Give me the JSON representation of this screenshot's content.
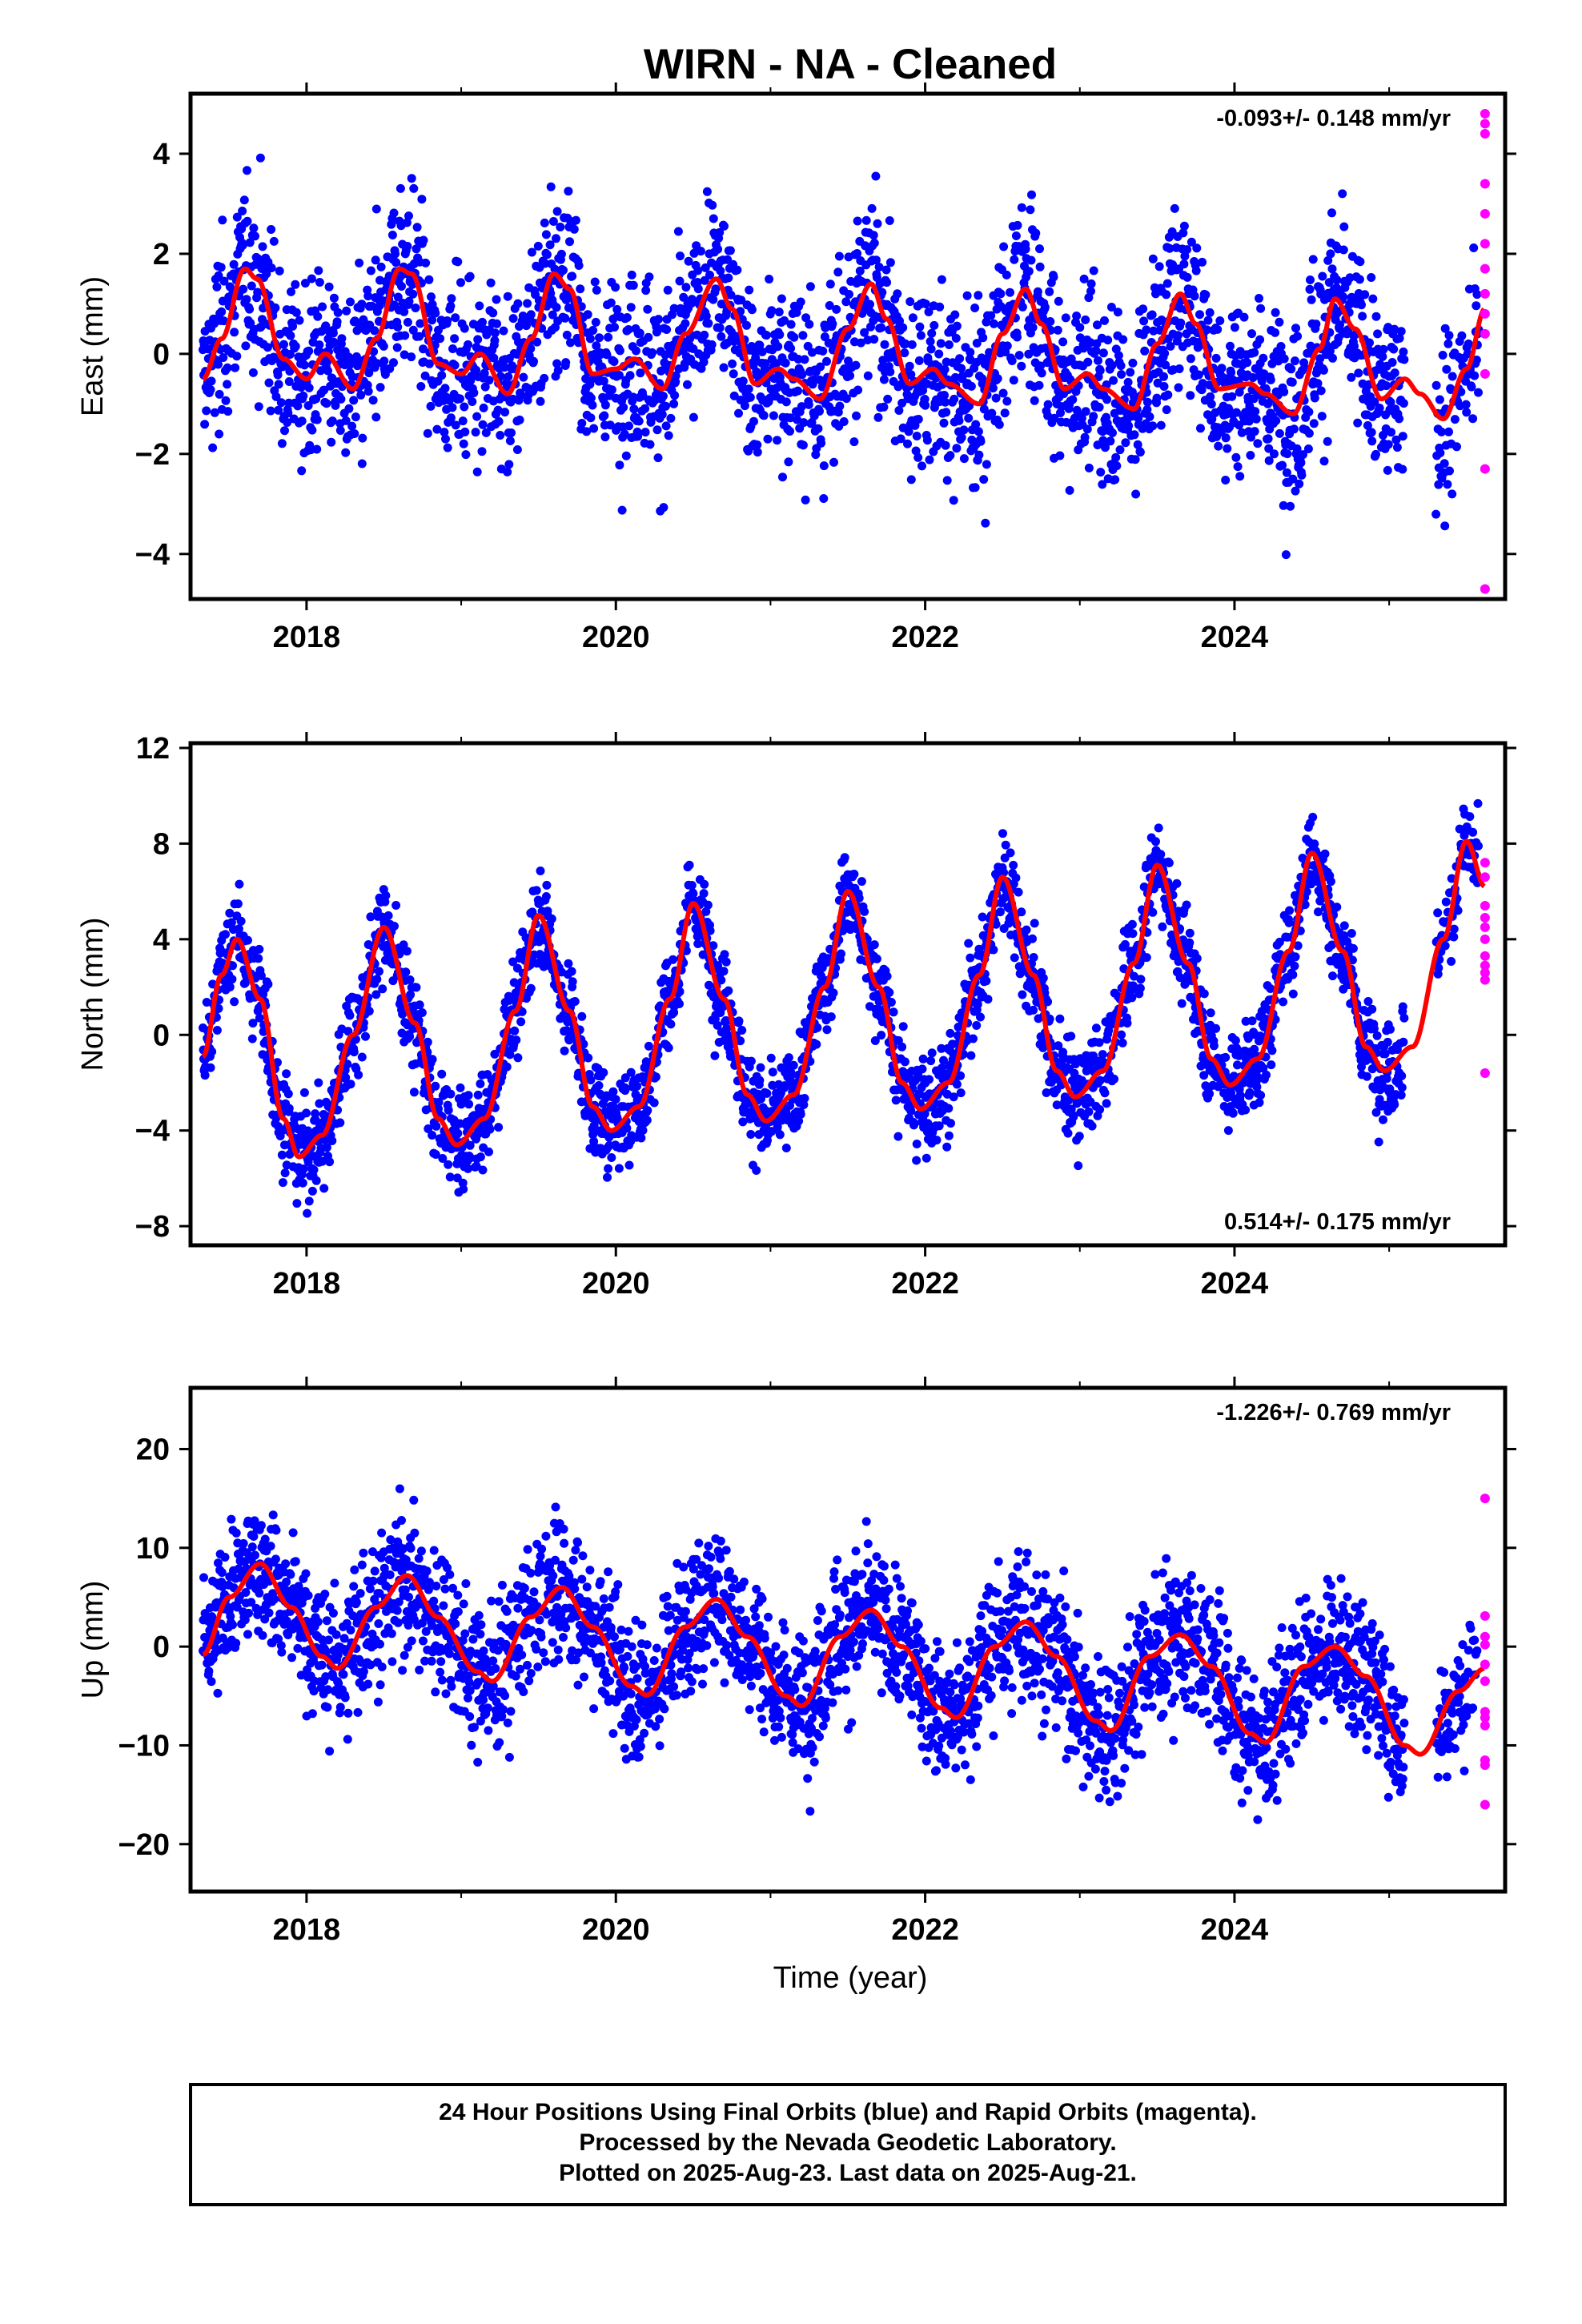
{
  "chart_data": {
    "type": "scatter",
    "title": "WIRN  - NA - Cleaned",
    "xlabel": "Time (year)",
    "xlim": [
      2017.25,
      2025.75
    ],
    "x_ticks": [
      "2018",
      "2020",
      "2022",
      "2024"
    ],
    "x_tick_values": [
      2018,
      2020,
      2022,
      2024
    ],
    "grid": false,
    "series_legend": "24 Hour Positions Using Final Orbits (blue) and Rapid Orbits (magenta).",
    "colors": {
      "final": "#0000ff",
      "rapid": "#ff00ff",
      "model": "#ff0000"
    },
    "panels": [
      {
        "key": "east",
        "ylabel": "East (mm)",
        "ylim": [
          -4.9,
          5.2
        ],
        "y_ticks": [
          -4,
          -2,
          0,
          2,
          4
        ],
        "rate": "-0.093+/- 0.148 mm/yr",
        "rate_position": "top-right",
        "model_curve": [
          [
            2017.33,
            -0.5
          ],
          [
            2017.45,
            0.3
          ],
          [
            2017.6,
            1.7
          ],
          [
            2017.68,
            1.5
          ],
          [
            2017.85,
            -0.1
          ],
          [
            2018.0,
            -0.5
          ],
          [
            2018.12,
            0.0
          ],
          [
            2018.3,
            -0.7
          ],
          [
            2018.45,
            0.3
          ],
          [
            2018.6,
            1.7
          ],
          [
            2018.68,
            1.6
          ],
          [
            2018.85,
            -0.2
          ],
          [
            2019.0,
            -0.4
          ],
          [
            2019.12,
            0.0
          ],
          [
            2019.3,
            -0.8
          ],
          [
            2019.45,
            0.3
          ],
          [
            2019.6,
            1.6
          ],
          [
            2019.7,
            1.3
          ],
          [
            2019.85,
            -0.4
          ],
          [
            2020.0,
            -0.3
          ],
          [
            2020.12,
            -0.1
          ],
          [
            2020.3,
            -0.7
          ],
          [
            2020.45,
            0.4
          ],
          [
            2020.65,
            1.5
          ],
          [
            2020.75,
            0.9
          ],
          [
            2020.9,
            -0.6
          ],
          [
            2021.05,
            -0.3
          ],
          [
            2021.15,
            -0.5
          ],
          [
            2021.32,
            -0.9
          ],
          [
            2021.5,
            0.5
          ],
          [
            2021.65,
            1.4
          ],
          [
            2021.75,
            0.7
          ],
          [
            2021.9,
            -0.6
          ],
          [
            2022.05,
            -0.3
          ],
          [
            2022.15,
            -0.6
          ],
          [
            2022.35,
            -1.0
          ],
          [
            2022.5,
            0.4
          ],
          [
            2022.65,
            1.3
          ],
          [
            2022.75,
            0.6
          ],
          [
            2022.9,
            -0.7
          ],
          [
            2023.05,
            -0.4
          ],
          [
            2023.15,
            -0.7
          ],
          [
            2023.35,
            -1.1
          ],
          [
            2023.5,
            0.2
          ],
          [
            2023.65,
            1.2
          ],
          [
            2023.75,
            0.6
          ],
          [
            2023.9,
            -0.7
          ],
          [
            2024.1,
            -0.6
          ],
          [
            2024.2,
            -0.8
          ],
          [
            2024.38,
            -1.2
          ],
          [
            2024.55,
            0.1
          ],
          [
            2024.65,
            1.1
          ],
          [
            2024.78,
            0.5
          ],
          [
            2024.95,
            -0.9
          ],
          [
            2025.1,
            -0.5
          ],
          [
            2025.2,
            -0.8
          ],
          [
            2025.35,
            -1.3
          ],
          [
            2025.5,
            -0.3
          ],
          [
            2025.62,
            0.9
          ]
        ],
        "rapid_points": [
          4.8,
          4.6,
          4.4,
          3.4,
          2.8,
          2.2,
          1.7,
          1.2,
          0.8,
          0.4,
          -0.4,
          -2.3,
          -4.7
        ]
      },
      {
        "key": "north",
        "ylabel": "North (mm)",
        "ylim": [
          -8.8,
          12.2
        ],
        "y_ticks": [
          -8,
          -4,
          0,
          4,
          8,
          12
        ],
        "rate": "0.514+/- 0.175 mm/yr",
        "rate_position": "bottom-right",
        "model_curve": [
          [
            2017.33,
            -0.9
          ],
          [
            2017.45,
            2.5
          ],
          [
            2017.55,
            4.0
          ],
          [
            2017.7,
            1.5
          ],
          [
            2017.85,
            -3.5
          ],
          [
            2017.95,
            -5.1
          ],
          [
            2018.1,
            -4.2
          ],
          [
            2018.3,
            0.0
          ],
          [
            2018.5,
            4.5
          ],
          [
            2018.7,
            0.5
          ],
          [
            2018.85,
            -3.5
          ],
          [
            2018.97,
            -4.6
          ],
          [
            2019.15,
            -3.5
          ],
          [
            2019.35,
            1.0
          ],
          [
            2019.5,
            5.0
          ],
          [
            2019.7,
            1.0
          ],
          [
            2019.85,
            -3.0
          ],
          [
            2019.97,
            -4.0
          ],
          [
            2020.15,
            -3.0
          ],
          [
            2020.35,
            1.5
          ],
          [
            2020.5,
            5.5
          ],
          [
            2020.7,
            1.5
          ],
          [
            2020.85,
            -2.5
          ],
          [
            2020.97,
            -3.6
          ],
          [
            2021.15,
            -2.5
          ],
          [
            2021.35,
            2.0
          ],
          [
            2021.5,
            6.0
          ],
          [
            2021.7,
            2.0
          ],
          [
            2021.85,
            -2.0
          ],
          [
            2021.97,
            -3.1
          ],
          [
            2022.15,
            -2.0
          ],
          [
            2022.35,
            2.5
          ],
          [
            2022.5,
            6.6
          ],
          [
            2022.7,
            2.5
          ],
          [
            2022.85,
            -1.5
          ],
          [
            2022.97,
            -2.6
          ],
          [
            2023.15,
            -1.5
          ],
          [
            2023.35,
            3.0
          ],
          [
            2023.5,
            7.1
          ],
          [
            2023.7,
            3.0
          ],
          [
            2023.85,
            -1.0
          ],
          [
            2023.97,
            -2.1
          ],
          [
            2024.15,
            -1.0
          ],
          [
            2024.35,
            3.5
          ],
          [
            2024.5,
            7.6
          ],
          [
            2024.7,
            3.5
          ],
          [
            2024.85,
            -0.5
          ],
          [
            2024.97,
            -1.5
          ],
          [
            2025.15,
            -0.5
          ],
          [
            2025.35,
            4.0
          ],
          [
            2025.5,
            8.1
          ],
          [
            2025.62,
            6.2
          ]
        ],
        "rapid_points": [
          7.2,
          6.6,
          5.4,
          4.9,
          4.5,
          4.0,
          3.3,
          2.9,
          2.6,
          2.3,
          -1.6
        ]
      },
      {
        "key": "up",
        "ylabel": "Up (mm)",
        "ylim": [
          -24.8,
          26.2
        ],
        "y_ticks": [
          -20,
          -10,
          0,
          10,
          20
        ],
        "rate": "-1.226+/- 0.769 mm/yr",
        "rate_position": "top-right",
        "model_curve": [
          [
            2017.33,
            -0.8
          ],
          [
            2017.5,
            5.0
          ],
          [
            2017.7,
            8.4
          ],
          [
            2017.9,
            4.0
          ],
          [
            2018.1,
            -1.0
          ],
          [
            2018.2,
            -2.2
          ],
          [
            2018.45,
            4.0
          ],
          [
            2018.65,
            7.2
          ],
          [
            2018.85,
            3.0
          ],
          [
            2019.1,
            -2.5
          ],
          [
            2019.2,
            -3.5
          ],
          [
            2019.45,
            3.0
          ],
          [
            2019.65,
            6.0
          ],
          [
            2019.85,
            2.0
          ],
          [
            2020.1,
            -4.0
          ],
          [
            2020.2,
            -4.9
          ],
          [
            2020.45,
            2.0
          ],
          [
            2020.65,
            4.8
          ],
          [
            2020.85,
            1.0
          ],
          [
            2021.1,
            -5.0
          ],
          [
            2021.2,
            -6.0
          ],
          [
            2021.45,
            1.0
          ],
          [
            2021.65,
            3.7
          ],
          [
            2021.85,
            0.0
          ],
          [
            2022.1,
            -6.2
          ],
          [
            2022.2,
            -7.2
          ],
          [
            2022.45,
            0.0
          ],
          [
            2022.65,
            2.5
          ],
          [
            2022.85,
            -1.0
          ],
          [
            2023.1,
            -7.5
          ],
          [
            2023.2,
            -8.5
          ],
          [
            2023.45,
            -1.0
          ],
          [
            2023.65,
            1.2
          ],
          [
            2023.85,
            -2.0
          ],
          [
            2024.1,
            -8.8
          ],
          [
            2024.2,
            -9.7
          ],
          [
            2024.45,
            -2.0
          ],
          [
            2024.65,
            0.0
          ],
          [
            2024.85,
            -3.0
          ],
          [
            2025.1,
            -10.0
          ],
          [
            2025.2,
            -10.9
          ],
          [
            2025.45,
            -4.5
          ],
          [
            2025.62,
            -2.2
          ]
        ],
        "rapid_points": [
          15.0,
          3.1,
          1.0,
          0.2,
          -1.8,
          -3.5,
          -6.6,
          -7.2,
          -8.0,
          -11.5,
          -12.0,
          -16.0
        ]
      }
    ],
    "rapid_x": 2025.62,
    "data_span": [
      2017.33,
      2025.62
    ]
  },
  "footer": {
    "line1": "24 Hour Positions Using Final Orbits (blue) and Rapid Orbits (magenta).",
    "line2": "Processed by the Nevada Geodetic Laboratory.",
    "line3": "Plotted on 2025-Aug-23. Last data on 2025-Aug-21."
  }
}
